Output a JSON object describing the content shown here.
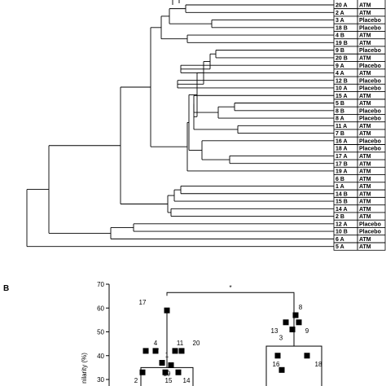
{
  "panel_b_letter": "B",
  "dendrogram": {
    "leaves": [
      {
        "sample": "20 A",
        "group": "ATM"
      },
      {
        "sample": "2 A",
        "group": "ATM"
      },
      {
        "sample": "3 A",
        "group": "Placebo"
      },
      {
        "sample": "18 B",
        "group": "Placebo"
      },
      {
        "sample": "4 B",
        "group": "ATM"
      },
      {
        "sample": "19 B",
        "group": "ATM"
      },
      {
        "sample": "9 B",
        "group": "Placebo"
      },
      {
        "sample": "20 B",
        "group": "ATM"
      },
      {
        "sample": "9 A",
        "group": "Placebo"
      },
      {
        "sample": "4 A",
        "group": "ATM"
      },
      {
        "sample": "12 B",
        "group": "Placebo"
      },
      {
        "sample": "10 A",
        "group": "Placebo"
      },
      {
        "sample": "15 A",
        "group": "ATM"
      },
      {
        "sample": "5 B",
        "group": "ATM"
      },
      {
        "sample": "8 B",
        "group": "Placebo"
      },
      {
        "sample": "8 A",
        "group": "Placebo"
      },
      {
        "sample": "11 A",
        "group": "ATM"
      },
      {
        "sample": "7 B",
        "group": "ATM"
      },
      {
        "sample": "16 A",
        "group": "Placebo"
      },
      {
        "sample": "18 A",
        "group": "Placebo"
      },
      {
        "sample": "17 A",
        "group": "ATM"
      },
      {
        "sample": "17 B",
        "group": "ATM"
      },
      {
        "sample": "19 A",
        "group": "ATM"
      },
      {
        "sample": "6 B",
        "group": "ATM"
      },
      {
        "sample": "1 A",
        "group": "ATM"
      },
      {
        "sample": "14 B",
        "group": "ATM"
      },
      {
        "sample": "15 B",
        "group": "ATM"
      },
      {
        "sample": "14 A",
        "group": "ATM"
      },
      {
        "sample": "2 B",
        "group": "ATM"
      },
      {
        "sample": "12 A",
        "group": "Placebo"
      },
      {
        "sample": "10 B",
        "group": "Placebo"
      },
      {
        "sample": "6 A",
        "group": "ATM"
      },
      {
        "sample": "5 A",
        "group": "ATM"
      }
    ]
  },
  "chart_data": {
    "type": "scatter",
    "ylabel_visible": "nilarity (%)",
    "ylim": [
      30,
      70
    ],
    "yticks": [
      30,
      40,
      50,
      60,
      70
    ],
    "significance": "*",
    "groups": [
      {
        "box_top": 35,
        "whisker_top": 60,
        "points": [
          {
            "label": "17",
            "y": 59
          },
          {
            "label": "4",
            "y": 42
          },
          {
            "label": "7",
            "y": 42
          },
          {
            "label": "1",
            "y": 37
          },
          {
            "label": "11",
            "y": 42
          },
          {
            "label": "20",
            "y": 42
          },
          {
            "label": "19",
            "y": 36
          },
          {
            "label": "2",
            "y": 33
          },
          {
            "label": "15",
            "y": 33
          },
          {
            "label": "14",
            "y": 33
          }
        ]
      },
      {
        "box_top": 44,
        "whisker_top": 66,
        "points": [
          {
            "label": "8",
            "y": 57
          },
          {
            "label": "13",
            "y": 54
          },
          {
            "label": "9",
            "y": 54
          },
          {
            "label": "3",
            "y": 51
          },
          {
            "label": "16",
            "y": 40
          },
          {
            "label": "18",
            "y": 40
          },
          {
            "label": "",
            "y": 34
          }
        ]
      }
    ]
  }
}
